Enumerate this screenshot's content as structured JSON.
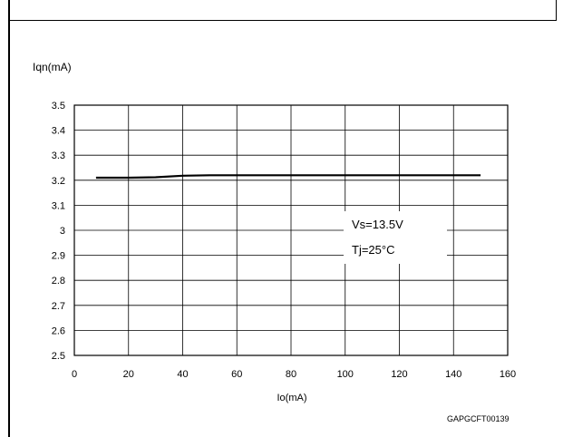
{
  "chart_data": {
    "type": "line",
    "title": "",
    "ylabel": "Iqn(mA)",
    "xlabel": "Io(mA)",
    "xlim": [
      0,
      160
    ],
    "ylim": [
      2.5,
      3.5
    ],
    "x_ticks": [
      "0",
      "20",
      "40",
      "60",
      "80",
      "100",
      "120",
      "140",
      "160"
    ],
    "y_ticks": [
      "3.5",
      "3.4",
      "3.3",
      "3.2",
      "3.1",
      "3",
      "2.9",
      "2.8",
      "2.7",
      "2.6",
      "2.5"
    ],
    "grid": true,
    "series": [
      {
        "x": [
          8,
          20,
          30,
          40,
          50,
          60,
          80,
          100,
          120,
          150
        ],
        "values": [
          3.21,
          3.21,
          3.212,
          3.218,
          3.22,
          3.22,
          3.22,
          3.22,
          3.22,
          3.22
        ],
        "color": "#000000"
      }
    ],
    "annotations": [
      "Vs=13.5V",
      "Tj=25°C"
    ],
    "code": "GAPGCFT00139"
  }
}
